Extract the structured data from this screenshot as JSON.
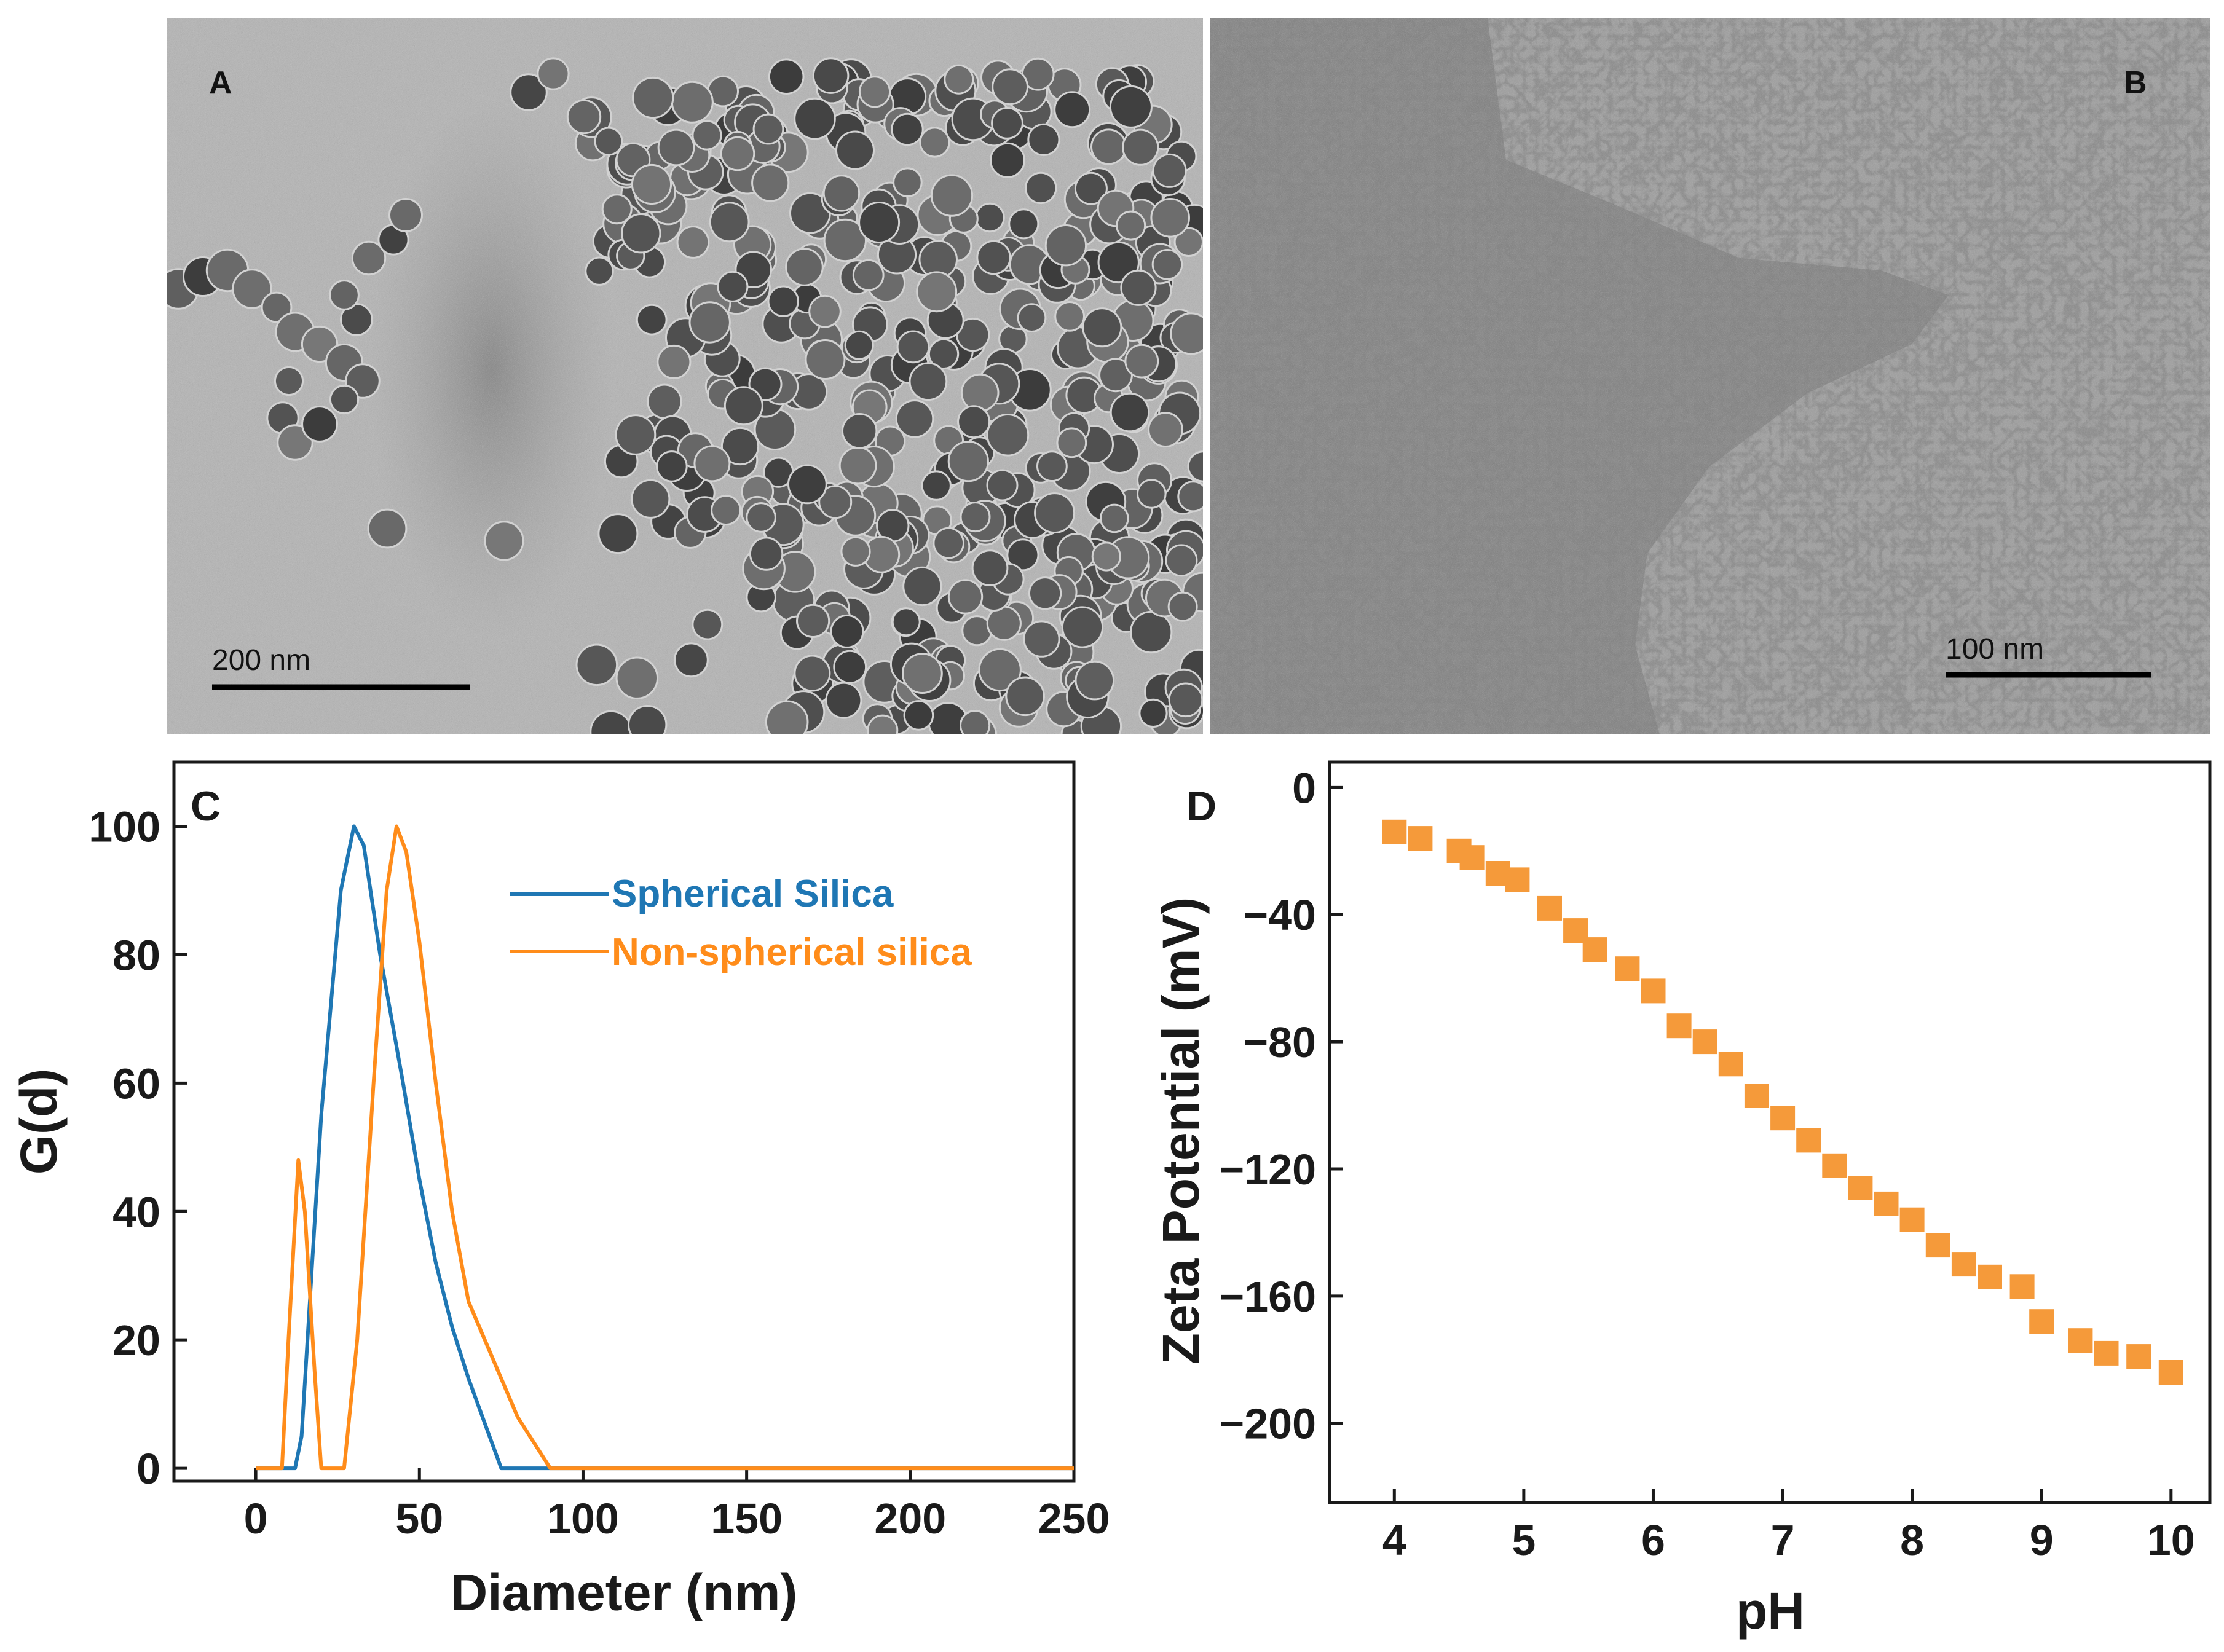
{
  "panels": {
    "a": {
      "letter": "A",
      "scale_bar_label": "200 nm",
      "description": "TEM image of spherical silica nanoparticles"
    },
    "b": {
      "letter": "B",
      "scale_bar_label": "100 nm",
      "description": "TEM image of non-spherical silica aggregates"
    },
    "c": {
      "letter": "C"
    },
    "d": {
      "letter": "D"
    }
  },
  "colors": {
    "spherical": "#1f77b4",
    "non_spherical": "#ff8c1a",
    "marker": "#f59a3a",
    "axis": "#1a1a1a"
  },
  "chart_data": [
    {
      "panel": "C",
      "type": "line",
      "title": "",
      "xlabel": "Diameter (nm)",
      "ylabel": "G(d)",
      "xlim": [
        -25,
        250
      ],
      "ylim": [
        -2,
        110
      ],
      "xticks": [
        0,
        50,
        100,
        150,
        200,
        250
      ],
      "yticks": [
        0,
        20,
        40,
        60,
        80,
        100
      ],
      "legend_position": "top-right",
      "series": [
        {
          "name": "Spherical Silica",
          "color": "#1f77b4",
          "x": [
            0,
            12,
            14,
            20,
            26,
            30,
            33,
            38,
            45,
            50,
            55,
            60,
            65,
            70,
            75,
            250
          ],
          "y": [
            0,
            0,
            5,
            55,
            90,
            100,
            97,
            80,
            60,
            45,
            32,
            22,
            14,
            7,
            0,
            0
          ]
        },
        {
          "name": "Non-spherical silica",
          "color": "#ff8c1a",
          "x": [
            0,
            8,
            10,
            13,
            15,
            18,
            20,
            22,
            27,
            31,
            36,
            40,
            43,
            46,
            50,
            55,
            60,
            65,
            70,
            75,
            80,
            85,
            90,
            250
          ],
          "y": [
            0,
            0,
            20,
            48,
            40,
            15,
            0,
            0,
            0,
            20,
            60,
            90,
            100,
            96,
            82,
            60,
            40,
            26,
            20,
            14,
            8,
            4,
            0,
            0
          ]
        }
      ]
    },
    {
      "panel": "D",
      "type": "scatter",
      "title": "",
      "xlabel": "pH",
      "ylabel": "Zeta Potential (mV)",
      "xlim": [
        3.5,
        10.3
      ],
      "ylim": [
        -225,
        8
      ],
      "xticks": [
        4,
        5,
        6,
        7,
        8,
        9,
        10
      ],
      "yticks": [
        0,
        -40,
        -80,
        -120,
        -160,
        -200
      ],
      "series": [
        {
          "name": "Zeta potential",
          "color": "#f59a3a",
          "marker": "square",
          "x": [
            4.0,
            4.2,
            4.5,
            4.6,
            4.8,
            4.95,
            5.2,
            5.4,
            5.55,
            5.8,
            6.0,
            6.2,
            6.4,
            6.6,
            6.8,
            7.0,
            7.2,
            7.4,
            7.6,
            7.8,
            8.0,
            8.2,
            8.4,
            8.6,
            8.85,
            9.0,
            9.3,
            9.5,
            9.75,
            10.0
          ],
          "y": [
            -14,
            -16,
            -20,
            -22,
            -27,
            -29,
            -38,
            -45,
            -51,
            -57,
            -64,
            -75,
            -80,
            -87,
            -97,
            -104,
            -111,
            -119,
            -126,
            -131,
            -136,
            -144,
            -150,
            -154,
            -157,
            -168,
            -174,
            -178,
            -179,
            -184
          ]
        }
      ]
    }
  ]
}
